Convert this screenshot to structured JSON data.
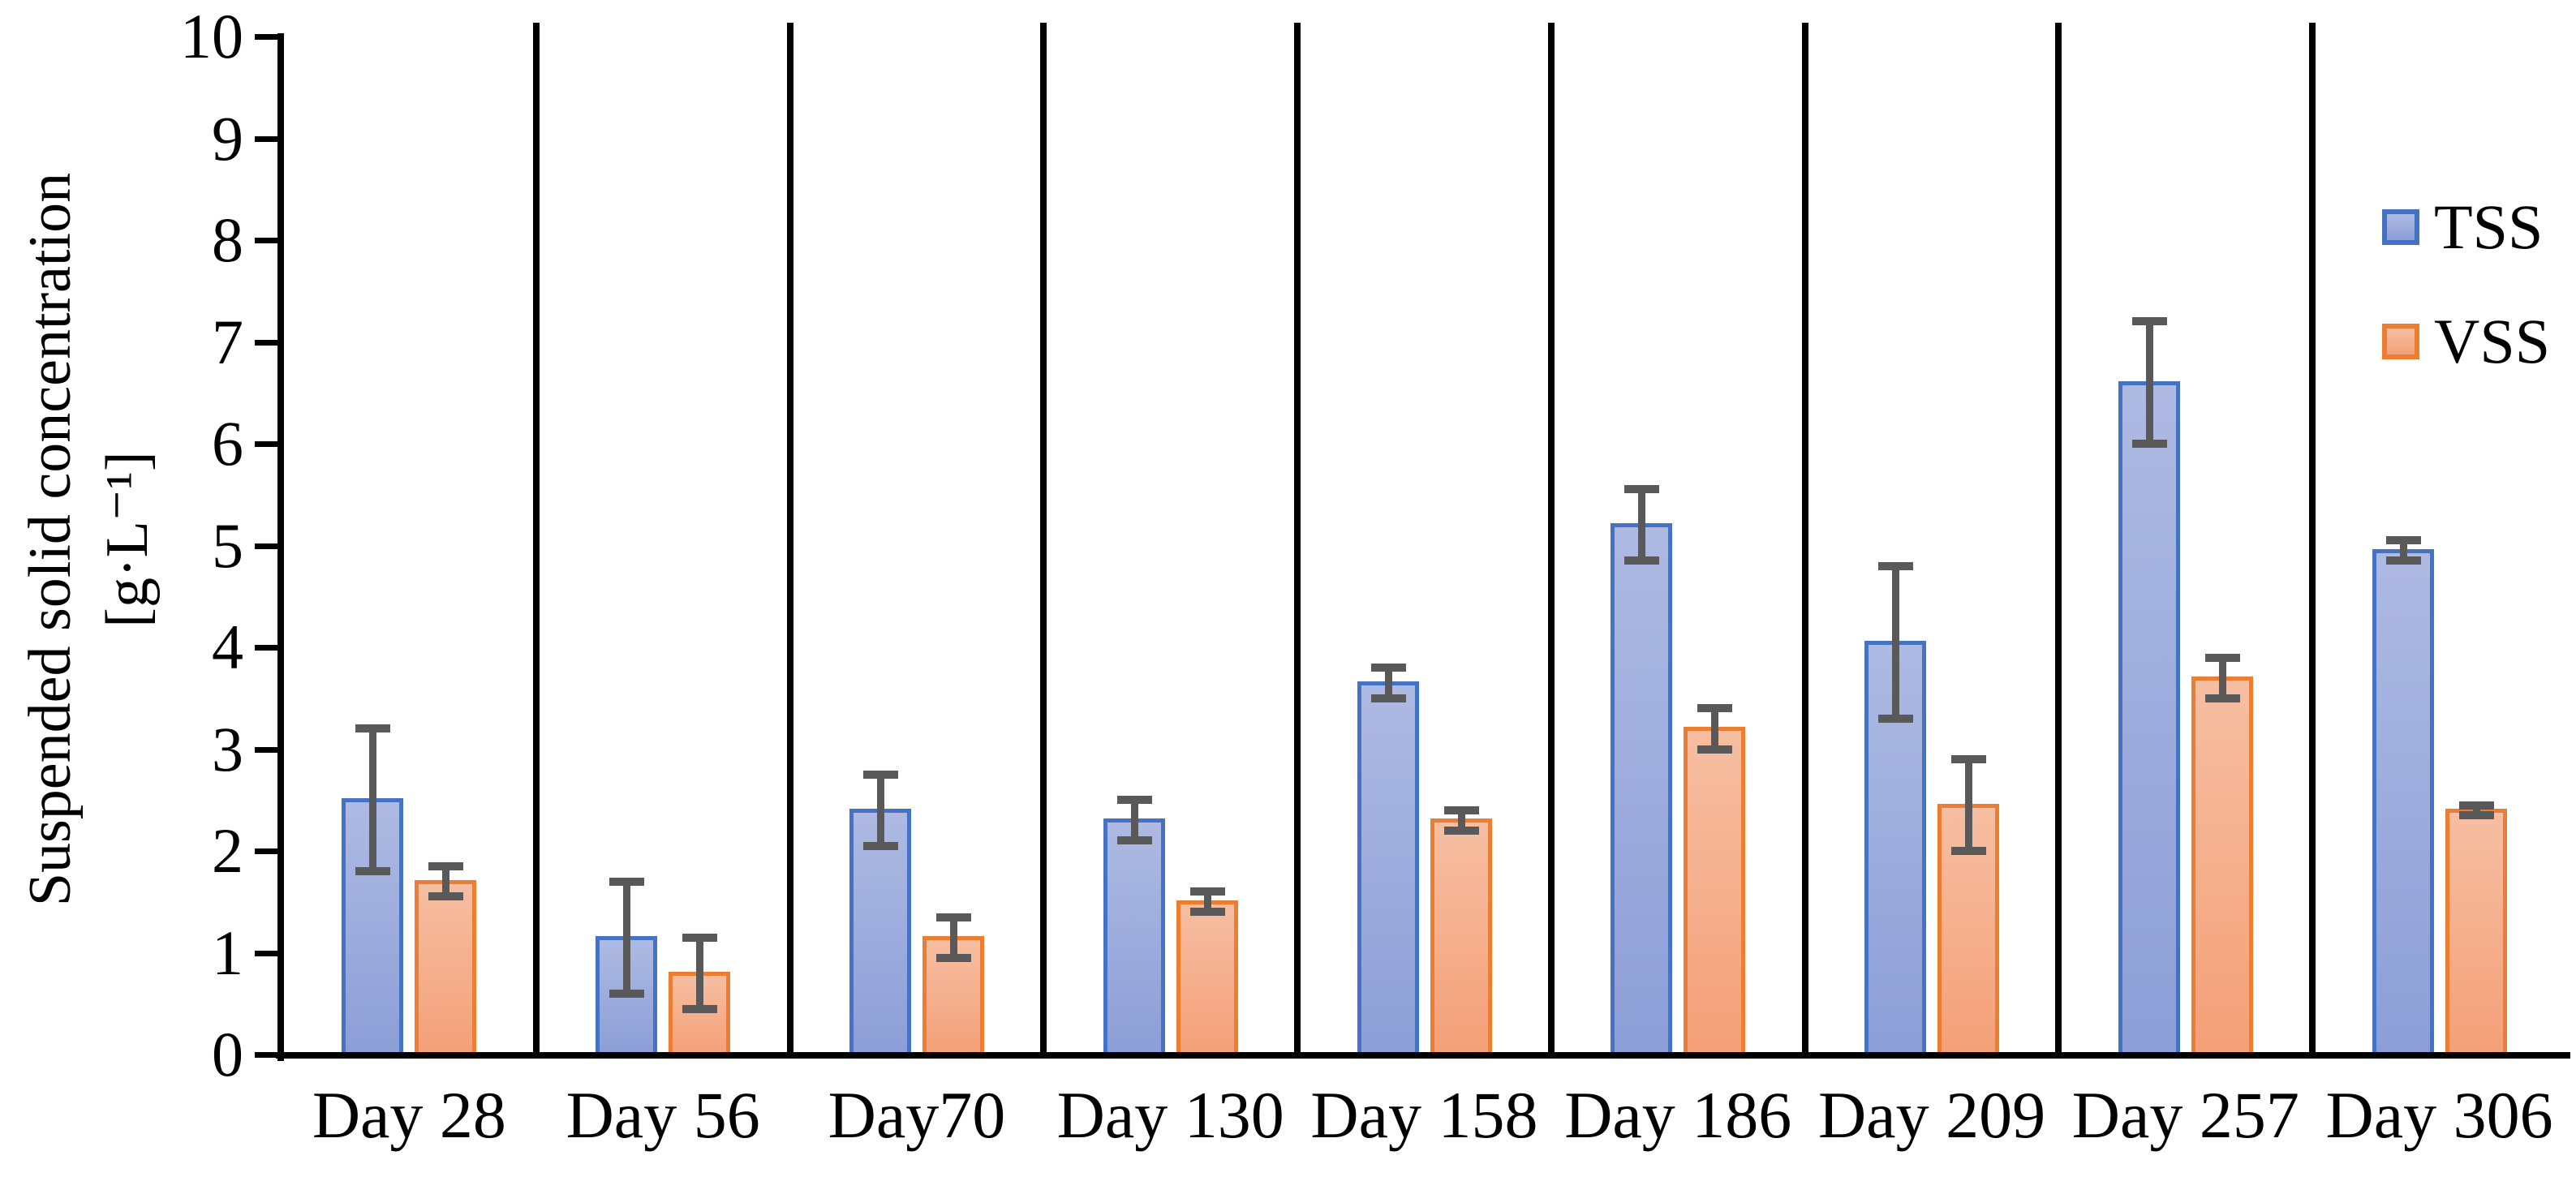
{
  "chart_data": {
    "type": "bar",
    "title": "",
    "categories": [
      "Day 28",
      "Day 56",
      "Day70",
      "Day 130",
      "Day 158",
      "Day 186",
      "Day 209",
      "Day 257",
      "Day 306"
    ],
    "series": [
      {
        "name": "TSS",
        "values": [
          2.5,
          1.15,
          2.4,
          2.3,
          3.65,
          5.2,
          4.05,
          6.6,
          4.95
        ],
        "errors": [
          0.7,
          0.55,
          0.35,
          0.2,
          0.15,
          0.35,
          0.75,
          0.6,
          0.1
        ]
      },
      {
        "name": "VSS",
        "values": [
          1.7,
          0.8,
          1.15,
          1.5,
          2.3,
          3.2,
          2.45,
          3.7,
          2.4
        ],
        "errors": [
          0.15,
          0.35,
          0.2,
          0.1,
          0.1,
          0.2,
          0.45,
          0.2,
          0.05
        ]
      }
    ],
    "ylabel_line1": "Suspended solid concentration",
    "ylabel_line2": "[g·L⁻¹]",
    "yticks": [
      "0",
      "1",
      "2",
      "3",
      "4",
      "5",
      "6",
      "7",
      "8",
      "9",
      "10"
    ],
    "ylim": [
      0,
      10
    ],
    "xlabel": "",
    "legend": [
      "TSS",
      "VSS"
    ],
    "legend_position": "top-right",
    "grid": false,
    "group_separators": true,
    "error_bars": true
  },
  "colors": {
    "tss_border": "#4472C4",
    "tss_fill_top": "#AEBAE2",
    "tss_fill_bottom": "#8C9ED7",
    "vss_border": "#ED7D31",
    "vss_fill_top": "#F6BEA2",
    "vss_fill_bottom": "#F4A078",
    "error_bar": "#595959",
    "axis": "#000000",
    "background": "#FFFFFF"
  }
}
